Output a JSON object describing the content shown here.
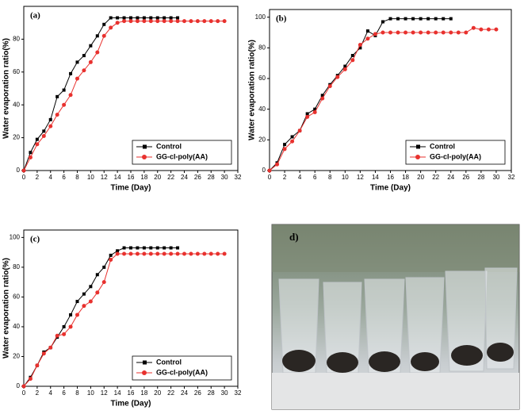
{
  "chart_data": [
    {
      "type": "line",
      "panel_label": "(a)",
      "x_label": "Time (Day)",
      "y_label": "Water evaporation ratio(%)",
      "xlim": [
        0,
        32
      ],
      "xticks": [
        0,
        2,
        4,
        6,
        8,
        10,
        12,
        14,
        16,
        18,
        20,
        22,
        24,
        26,
        28,
        30,
        32
      ],
      "ylim": [
        0,
        100
      ],
      "yticks": [
        0,
        20,
        40,
        60,
        80
      ],
      "series": [
        {
          "name": "Control",
          "color": "#000000",
          "marker": "square",
          "x": [
            0,
            1,
            2,
            3,
            4,
            5,
            6,
            7,
            8,
            9,
            10,
            11,
            12,
            13,
            14,
            15,
            16,
            17,
            18,
            19,
            20,
            21,
            22,
            23
          ],
          "values": [
            0,
            11,
            19,
            24,
            31,
            45,
            49,
            59,
            66,
            70,
            76,
            82,
            89,
            93,
            93,
            93,
            93,
            93,
            93,
            93,
            93,
            93,
            93,
            93
          ]
        },
        {
          "name": "GG-cl-poly(AA)",
          "color": "#e8312e",
          "marker": "circle",
          "x": [
            0,
            1,
            2,
            3,
            4,
            5,
            6,
            7,
            8,
            9,
            10,
            11,
            12,
            13,
            14,
            15,
            16,
            17,
            18,
            19,
            20,
            21,
            22,
            23,
            24,
            25,
            26,
            27,
            28,
            29,
            30
          ],
          "values": [
            0,
            8,
            16,
            21,
            27,
            34,
            40,
            46,
            56,
            61,
            66,
            72,
            82,
            87,
            90,
            91,
            91,
            91,
            91,
            91,
            91,
            91,
            91,
            91,
            91,
            91,
            91,
            91,
            91,
            91,
            91
          ]
        }
      ]
    },
    {
      "type": "line",
      "panel_label": "(b)",
      "x_label": "Time (Day)",
      "y_label": "Water evaporation ratio(%)",
      "xlim": [
        0,
        32
      ],
      "xticks": [
        0,
        2,
        4,
        6,
        8,
        10,
        12,
        14,
        16,
        18,
        20,
        22,
        24,
        26,
        28,
        30,
        32
      ],
      "ylim": [
        0,
        105
      ],
      "yticks": [
        0,
        20,
        40,
        60,
        80,
        100
      ],
      "series": [
        {
          "name": "Control",
          "color": "#000000",
          "marker": "square",
          "x": [
            0,
            1,
            2,
            3,
            4,
            5,
            6,
            7,
            8,
            9,
            10,
            11,
            12,
            13,
            14,
            15,
            16,
            17,
            18,
            19,
            20,
            21,
            22,
            23,
            24
          ],
          "values": [
            0,
            5,
            17,
            22,
            26,
            37,
            40,
            49,
            56,
            62,
            68,
            75,
            80,
            91,
            88,
            97,
            99,
            99,
            99,
            99,
            99,
            99,
            99,
            99,
            99
          ]
        },
        {
          "name": "GG-cl-poly(AA)",
          "color": "#e8312e",
          "marker": "circle",
          "x": [
            0,
            1,
            2,
            3,
            4,
            5,
            6,
            7,
            8,
            9,
            10,
            11,
            12,
            13,
            14,
            15,
            16,
            17,
            18,
            19,
            20,
            21,
            22,
            23,
            24,
            25,
            26,
            27,
            28,
            29,
            30
          ],
          "values": [
            0,
            4,
            14,
            19,
            26,
            35,
            38,
            47,
            55,
            61,
            66,
            72,
            82,
            86,
            89,
            90,
            90,
            90,
            90,
            90,
            90,
            90,
            90,
            90,
            90,
            90,
            90,
            93,
            92,
            92,
            92
          ]
        }
      ]
    },
    {
      "type": "line",
      "panel_label": "(c)",
      "x_label": "Time (Day)",
      "y_label": "Water evaporation ratio(%)",
      "xlim": [
        0,
        32
      ],
      "xticks": [
        0,
        2,
        4,
        6,
        8,
        10,
        12,
        14,
        16,
        18,
        20,
        22,
        24,
        26,
        28,
        30,
        32
      ],
      "ylim": [
        0,
        105
      ],
      "yticks": [
        0,
        20,
        40,
        60,
        80,
        100
      ],
      "series": [
        {
          "name": "Control",
          "color": "#000000",
          "marker": "square",
          "x": [
            0,
            1,
            2,
            3,
            4,
            5,
            6,
            7,
            8,
            9,
            10,
            11,
            12,
            13,
            14,
            15,
            16,
            17,
            18,
            19,
            20,
            21,
            22,
            23
          ],
          "values": [
            0,
            6,
            14,
            23,
            26,
            33,
            40,
            48,
            57,
            62,
            67,
            75,
            80,
            88,
            91,
            93,
            93,
            93,
            93,
            93,
            93,
            93,
            93,
            93
          ]
        },
        {
          "name": "GG-cl-poly(AA)",
          "color": "#e8312e",
          "marker": "circle",
          "x": [
            0,
            1,
            2,
            3,
            4,
            5,
            6,
            7,
            8,
            9,
            10,
            11,
            12,
            13,
            14,
            15,
            16,
            17,
            18,
            19,
            20,
            21,
            22,
            23,
            24,
            25,
            26,
            27,
            28,
            29,
            30
          ],
          "values": [
            0,
            5,
            14,
            22,
            26,
            34,
            35,
            40,
            48,
            54,
            57,
            63,
            70,
            85,
            89,
            89,
            89,
            89,
            89,
            89,
            89,
            89,
            89,
            89,
            89,
            89,
            89,
            89,
            89,
            89,
            89
          ]
        }
      ]
    }
  ],
  "photo": {
    "label": "d)"
  }
}
